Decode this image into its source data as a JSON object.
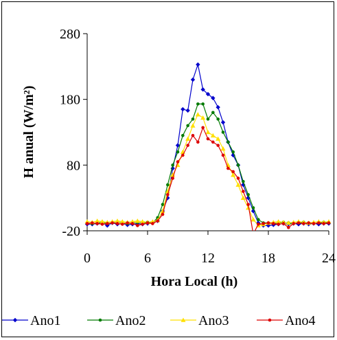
{
  "chart_data": {
    "type": "line",
    "xlabel": "Hora Local (h)",
    "ylabel": "H anual (W/m²)",
    "xlim": [
      0,
      24
    ],
    "ylim": [
      -20,
      280
    ],
    "xticks": [
      0,
      6,
      12,
      18,
      24
    ],
    "yticks": [
      -20,
      80,
      180,
      280
    ],
    "xtick_labels": [
      "0",
      "6",
      "12",
      "18",
      "24"
    ],
    "ytick_labels": [
      "-20",
      "80",
      "180",
      "280"
    ],
    "grid": false,
    "legend_position": "bottom",
    "series": [
      {
        "name": "Ano1",
        "color": "#0000CC",
        "marker": "diamond",
        "x": [
          0,
          0.5,
          1,
          1.5,
          2,
          2.5,
          3,
          3.5,
          4,
          4.5,
          5,
          5.5,
          6,
          6.5,
          7,
          7.5,
          8,
          8.5,
          9,
          9.5,
          10,
          10.5,
          11,
          11.5,
          12,
          12.5,
          13,
          13.5,
          14,
          14.5,
          15,
          15.5,
          16,
          16.5,
          17,
          17.5,
          18,
          18.5,
          19,
          19.5,
          20,
          20.5,
          21,
          21.5,
          22,
          22.5,
          23,
          23.5,
          24
        ],
        "values": [
          -10,
          -10,
          -9,
          -8,
          -12,
          -8,
          -10,
          -9,
          -11,
          -10,
          -9,
          -10,
          -9,
          -8,
          -5,
          10,
          30,
          75,
          110,
          165,
          163,
          210,
          233,
          195,
          188,
          182,
          168,
          145,
          115,
          95,
          80,
          50,
          30,
          10,
          -8,
          -12,
          -12,
          -11,
          -10,
          -9,
          -10,
          -9,
          -10,
          -9,
          -10,
          -9,
          -10,
          -9,
          -9
        ]
      },
      {
        "name": "Ano2",
        "color": "#007A00",
        "marker": "circle",
        "x": [
          0,
          0.5,
          1,
          1.5,
          2,
          2.5,
          3,
          3.5,
          4,
          4.5,
          5,
          5.5,
          6,
          6.5,
          7,
          7.5,
          8,
          8.5,
          9,
          9.5,
          10,
          10.5,
          11,
          11.5,
          12,
          12.5,
          13,
          13.5,
          14,
          14.5,
          15,
          15.5,
          16,
          16.5,
          17,
          17.5,
          18,
          18.5,
          19,
          19.5,
          20,
          20.5,
          21,
          21.5,
          22,
          22.5,
          23,
          23.5,
          24
        ],
        "values": [
          -8,
          -9,
          -8,
          -7,
          -9,
          -8,
          -7,
          -8,
          -9,
          -8,
          -7,
          -8,
          -7,
          -8,
          0,
          20,
          50,
          80,
          100,
          125,
          140,
          150,
          173,
          173,
          150,
          160,
          150,
          130,
          115,
          100,
          80,
          55,
          35,
          15,
          -3,
          -8,
          -8,
          -9,
          -8,
          -7,
          -8,
          -9,
          -8,
          -7,
          -8,
          -9,
          -8,
          -7,
          -8
        ]
      },
      {
        "name": "Ano3",
        "color": "#FFE000",
        "marker": "triangle",
        "x": [
          0,
          0.5,
          1,
          1.5,
          2,
          2.5,
          3,
          3.5,
          4,
          4.5,
          5,
          5.5,
          6,
          6.5,
          7,
          7.5,
          8,
          8.5,
          9,
          9.5,
          10,
          10.5,
          11,
          11.5,
          12,
          12.5,
          13,
          13.5,
          14,
          14.5,
          15,
          15.5,
          16,
          16.5,
          17,
          17.5,
          18,
          18.5,
          19,
          19.5,
          20,
          20.5,
          21,
          21.5,
          22,
          22.5,
          23,
          23.5,
          24
        ],
        "values": [
          -6,
          -7,
          -5,
          -6,
          -7,
          -6,
          -5,
          -6,
          -7,
          -6,
          -5,
          -6,
          -7,
          -6,
          -4,
          10,
          40,
          65,
          80,
          100,
          120,
          140,
          157,
          152,
          130,
          125,
          120,
          105,
          80,
          65,
          50,
          30,
          15,
          -3,
          -12,
          -10,
          -8,
          -7,
          -6,
          -7,
          -8,
          -7,
          -6,
          -7,
          -8,
          -7,
          -6,
          -7,
          -6
        ]
      },
      {
        "name": "Ano4",
        "color": "#DD0000",
        "marker": "circle",
        "x": [
          0,
          0.5,
          1,
          1.5,
          2,
          2.5,
          3,
          3.5,
          4,
          4.5,
          5,
          5.5,
          6,
          6.5,
          7,
          7.5,
          8,
          8.5,
          9,
          9.5,
          10,
          10.5,
          11,
          11.5,
          12,
          12.5,
          13,
          13.5,
          14,
          14.5,
          15,
          15.5,
          16,
          16.5,
          17,
          17.5,
          18,
          18.5,
          19,
          19.5,
          20,
          20.5,
          21,
          21.5,
          22,
          22.5,
          23,
          23.5,
          24
        ],
        "values": [
          -9,
          -8,
          -9,
          -10,
          -9,
          -8,
          -9,
          -10,
          -8,
          -9,
          -12,
          -10,
          -8,
          -9,
          -5,
          5,
          35,
          60,
          85,
          95,
          110,
          125,
          115,
          137,
          120,
          115,
          110,
          95,
          75,
          70,
          60,
          40,
          20,
          -25,
          -10,
          -9,
          -8,
          -9,
          -10,
          -9,
          -15,
          -9,
          -8,
          -9,
          -8,
          -9,
          -8,
          -9,
          -8
        ]
      }
    ]
  }
}
